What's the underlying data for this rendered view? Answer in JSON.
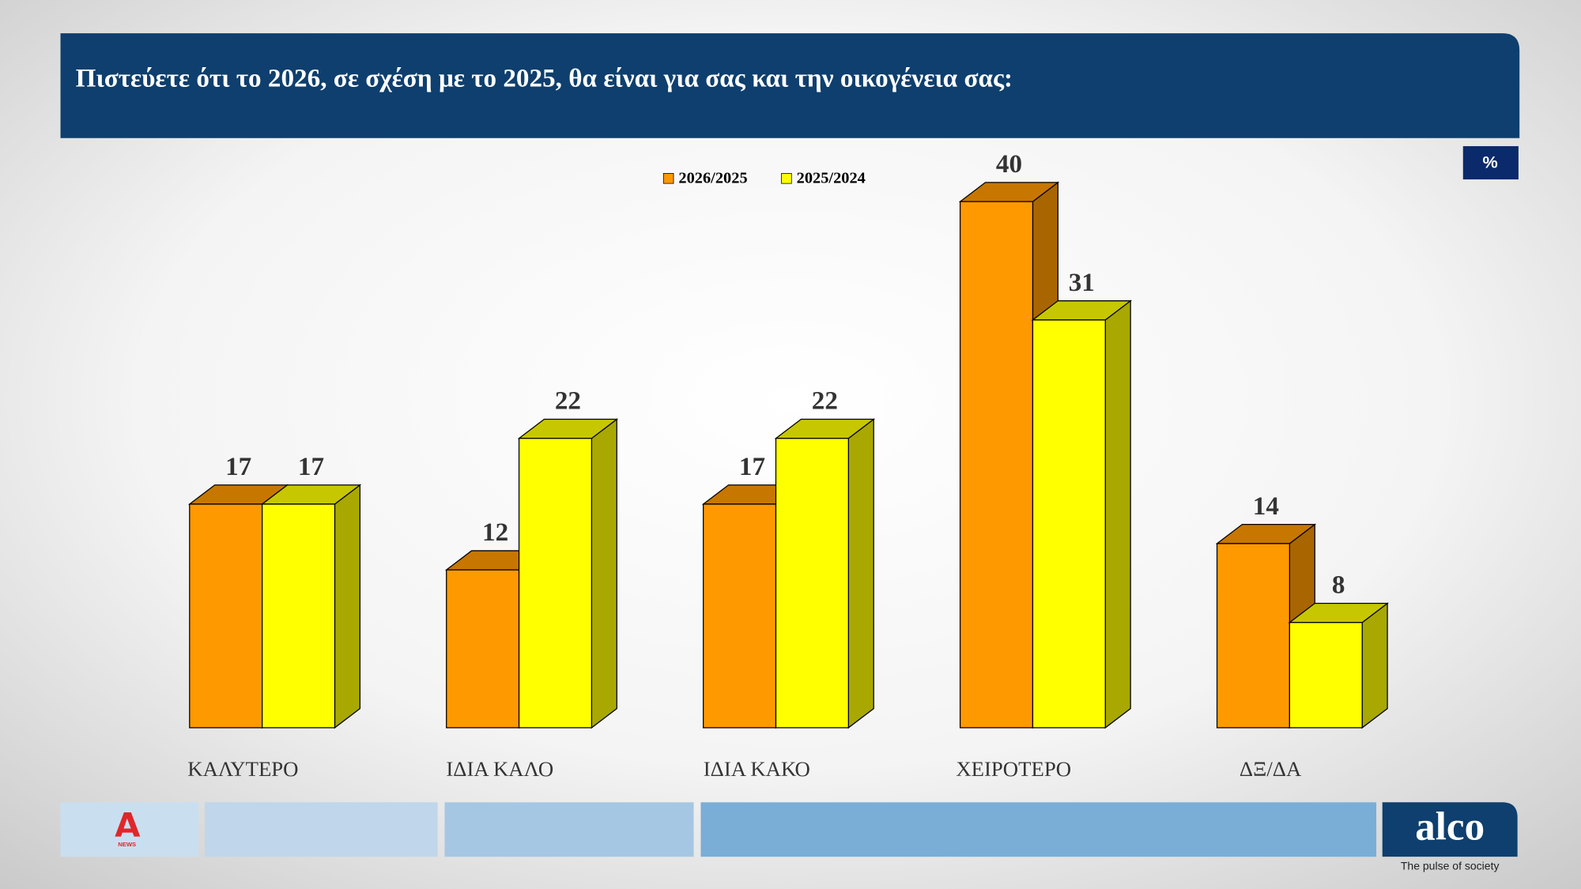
{
  "chart_data": {
    "type": "bar",
    "title": "Πιστεύετε ότι το 2026, σε σχέση με το 2025, θα είναι για σας και την οικογένεια σας:",
    "unit_label": "%",
    "categories": [
      "ΚΑΛΥΤΕΡΟ",
      "ΙΔΙΑ ΚΑΛΟ",
      "ΙΔΙΑ ΚΑΚΟ",
      "ΧΕΙΡΟΤΕΡΟ",
      "ΔΞ/ΔΑ"
    ],
    "series": [
      {
        "name": "2026/2025",
        "color": "#ff9900",
        "values": [
          17,
          12,
          17,
          40,
          14
        ]
      },
      {
        "name": "2025/2024",
        "color": "#ffff00",
        "values": [
          17,
          22,
          22,
          31,
          8
        ]
      }
    ],
    "ylim": [
      0,
      40
    ]
  },
  "footer": {
    "logo": "NEWS",
    "brand": "alco",
    "tagline": "The pulse of society"
  }
}
